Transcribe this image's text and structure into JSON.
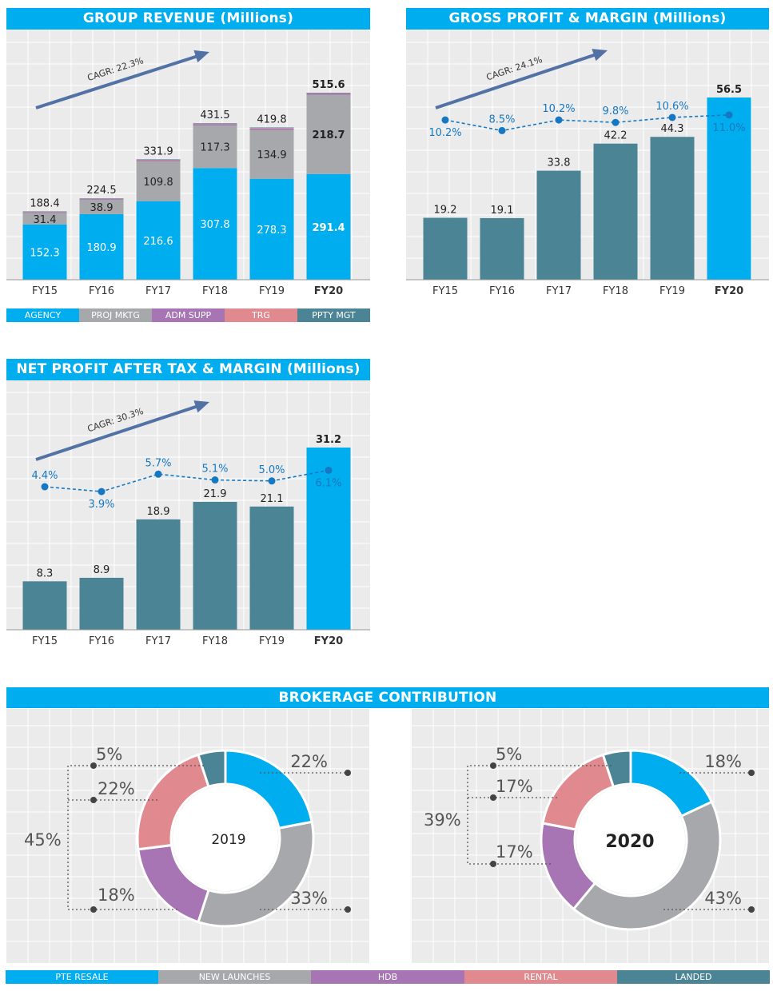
{
  "colors": {
    "header": "#00adef",
    "agency": "#00adef",
    "proj_mktg": "#a6a8ab",
    "adm_supp": "#a774b4",
    "trg": "#e08a8f",
    "ppty_mgt": "#4b8595",
    "bar_dark": "#4b8595",
    "bar_highlight": "#00adef",
    "margin_line": "#1678c2"
  },
  "chart_data": [
    {
      "id": "revenue",
      "type": "bar",
      "title": "GROUP REVENUE (Millions)",
      "categories": [
        "FY15",
        "FY16",
        "FY17",
        "FY18",
        "FY19",
        "FY20"
      ],
      "series": [
        {
          "name": "AGENCY",
          "values": [
            152.3,
            180.9,
            216.6,
            307.8,
            278.3,
            291.4
          ]
        },
        {
          "name": "PROJ MKTG",
          "values": [
            31.4,
            38.9,
            109.8,
            117.3,
            134.9,
            218.7
          ]
        },
        {
          "name": "ADM SUPP",
          "values": [
            2.4,
            2.6,
            3.0,
            3.6,
            3.9,
            3.4
          ]
        },
        {
          "name": "TRG",
          "values": [
            1.0,
            1.0,
            1.2,
            1.3,
            1.3,
            1.0
          ]
        },
        {
          "name": "PPTY MGT",
          "values": [
            1.3,
            1.1,
            1.3,
            1.5,
            1.4,
            1.1
          ]
        }
      ],
      "totals": [
        188.4,
        224.5,
        331.9,
        431.5,
        419.8,
        515.6
      ],
      "labels": {
        "agency": [
          "152.3",
          "180.9",
          "216.6",
          "307.8",
          "278.3",
          "291.4"
        ],
        "proj": [
          "31.4",
          "38.9",
          "109.8",
          "117.3",
          "134.9",
          "218.7"
        ],
        "totals": [
          "188.4",
          "224.5",
          "331.9",
          "431.5",
          "419.8",
          "515.6"
        ]
      },
      "annotation": "CAGR: 22.3%",
      "ylim": [
        0,
        560
      ]
    },
    {
      "id": "gross",
      "type": "bar",
      "title": "GROSS PROFIT & MARGIN (Millions)",
      "categories": [
        "FY15",
        "FY16",
        "FY17",
        "FY18",
        "FY19",
        "FY20"
      ],
      "values": [
        19.2,
        19.1,
        33.8,
        42.2,
        44.3,
        56.5
      ],
      "value_labels": [
        "19.2",
        "19.1",
        "33.8",
        "42.2",
        "44.3",
        "56.5"
      ],
      "margins": [
        10.2,
        8.5,
        10.2,
        9.8,
        10.6,
        11.0
      ],
      "margin_labels": [
        "10.2%",
        "8.5%",
        "10.2%",
        "9.8%",
        "10.6%",
        "11.0%"
      ],
      "margin_label_pos": [
        "below",
        "above",
        "above",
        "above",
        "above",
        "below"
      ],
      "annotation": "CAGR: 24.1%",
      "ylim": [
        0,
        66
      ],
      "margin_range": [
        6.0,
        12.0
      ]
    },
    {
      "id": "net",
      "type": "bar",
      "title": "NET PROFIT AFTER TAX & MARGIN (Millions)",
      "categories": [
        "FY15",
        "FY16",
        "FY17",
        "FY18",
        "FY19",
        "FY20"
      ],
      "values": [
        8.3,
        8.9,
        18.9,
        21.9,
        21.1,
        31.2
      ],
      "value_labels": [
        "8.3",
        "8.9",
        "18.9",
        "21.9",
        "21.1",
        "31.2"
      ],
      "margins": [
        4.4,
        3.9,
        5.7,
        5.1,
        5.0,
        6.1
      ],
      "margin_labels": [
        "4.4%",
        "3.9%",
        "5.7%",
        "5.1%",
        "5.0%",
        "6.1%"
      ],
      "margin_label_pos": [
        "above",
        "below",
        "above",
        "above",
        "above",
        "below"
      ],
      "annotation": "CAGR: 30.3%",
      "ylim": [
        0,
        36
      ],
      "margin_range": [
        2.5,
        6.8
      ]
    },
    {
      "id": "brokerage2019",
      "type": "pie",
      "title": "BROKERAGE CONTRIBUTION",
      "center_label": "2019",
      "slices": [
        {
          "name": "PTE RESALE",
          "value": 22
        },
        {
          "name": "NEW LAUNCHES",
          "value": 33
        },
        {
          "name": "HDB",
          "value": 18
        },
        {
          "name": "RENTAL",
          "value": 22
        },
        {
          "name": "LANDED",
          "value": 5
        }
      ],
      "labels": {
        "pte": "22%",
        "new": "33%",
        "hdb": "18%",
        "rental": "22%",
        "landed": "5%",
        "group": "45%"
      }
    },
    {
      "id": "brokerage2020",
      "type": "pie",
      "center_label": "2020",
      "slices": [
        {
          "name": "PTE RESALE",
          "value": 18
        },
        {
          "name": "NEW LAUNCHES",
          "value": 43
        },
        {
          "name": "HDB",
          "value": 17
        },
        {
          "name": "RENTAL",
          "value": 17
        },
        {
          "name": "LANDED",
          "value": 5
        }
      ],
      "labels": {
        "pte": "18%",
        "new": "43%",
        "hdb": "17%",
        "rental": "17%",
        "landed": "5%",
        "group": "39%"
      }
    }
  ],
  "revenue_legend": [
    "AGENCY",
    "PROJ MKTG",
    "ADM SUPP",
    "TRG",
    "PPTY MGT"
  ],
  "brokerage_legend": [
    "PTE RESALE",
    "NEW LAUNCHES",
    "HDB",
    "RENTAL",
    "LANDED"
  ],
  "brokerage_title": "BROKERAGE CONTRIBUTION"
}
